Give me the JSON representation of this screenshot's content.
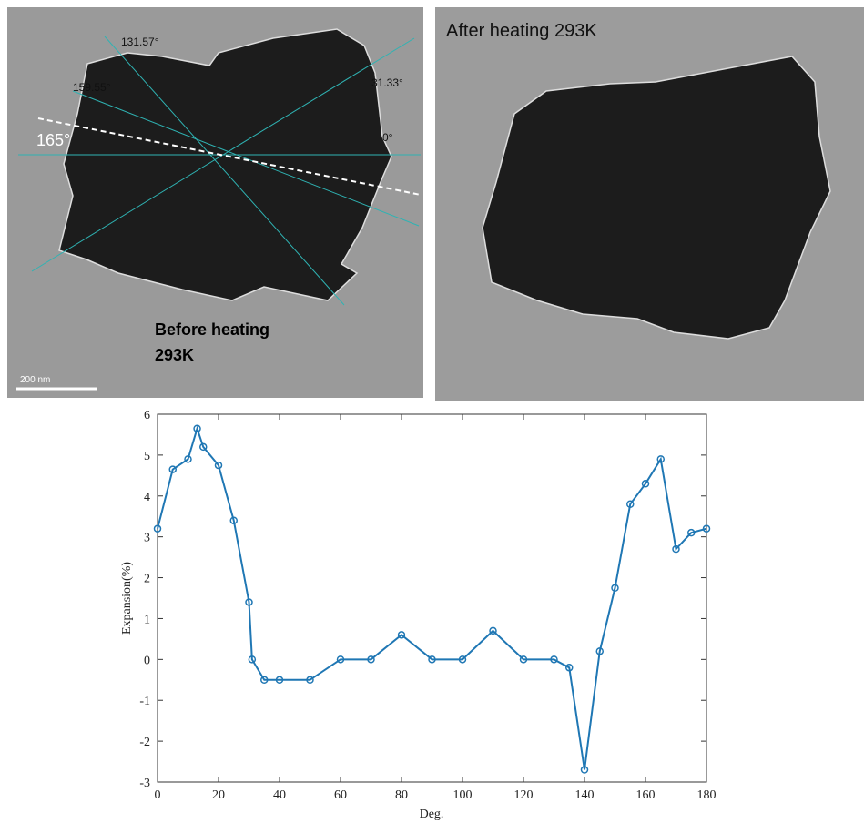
{
  "images": [
    {
      "labels": [
        "131.57°",
        "159.55°",
        "31.33°",
        "0°",
        "165°",
        "Before heating",
        "293K",
        "200 nm"
      ]
    },
    {
      "labels": [
        "After heating 293K"
      ]
    }
  ],
  "chart_data": {
    "type": "line",
    "xlabel": "Deg.",
    "ylabel": "Expansion(%)",
    "x": [
      0,
      5,
      10,
      13,
      15,
      20,
      25,
      30,
      31,
      35,
      40,
      50,
      60,
      70,
      80,
      90,
      100,
      110,
      120,
      130,
      135,
      140,
      145,
      150,
      155,
      160,
      165,
      170,
      175,
      180
    ],
    "values": [
      3.2,
      4.65,
      4.9,
      5.65,
      5.2,
      4.75,
      3.4,
      1.4,
      0,
      -0.5,
      -0.5,
      -0.5,
      0,
      0,
      0.6,
      0,
      0,
      0.7,
      0,
      0,
      -0.2,
      -2.7,
      0.2,
      1.75,
      3.8,
      4.3,
      4.9,
      2.7,
      3.1,
      3.2
    ],
    "color": "#1f77b4",
    "xlim": [
      0,
      180
    ],
    "xticks": [
      0,
      20,
      40,
      60,
      80,
      100,
      120,
      140,
      160,
      180
    ],
    "ylim": [
      -3,
      6
    ],
    "yticks": [
      -3,
      -2,
      -1,
      0,
      1,
      2,
      3,
      4,
      5,
      6
    ]
  }
}
